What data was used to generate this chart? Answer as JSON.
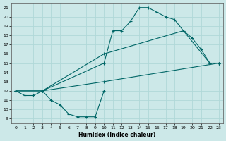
{
  "xlabel": "Humidex (Indice chaleur)",
  "bg_color": "#cce8e8",
  "grid_color": "#b0d8d8",
  "line_color": "#006666",
  "xlim": [
    -0.5,
    23.5
  ],
  "ylim": [
    8.5,
    21.5
  ],
  "xticks": [
    0,
    1,
    2,
    3,
    4,
    5,
    6,
    7,
    8,
    9,
    10,
    11,
    12,
    13,
    14,
    15,
    16,
    17,
    18,
    19,
    20,
    21,
    22,
    23
  ],
  "yticks": [
    9,
    10,
    11,
    12,
    13,
    14,
    15,
    16,
    17,
    18,
    19,
    20,
    21
  ],
  "line1_x": [
    0,
    1,
    2,
    3,
    4,
    5,
    6,
    7,
    8,
    9,
    10
  ],
  "line1_y": [
    12,
    11.5,
    11.5,
    12,
    11,
    10.5,
    9.5,
    9.2,
    9.2,
    9.2,
    12
  ],
  "line2_x": [
    3,
    10,
    11,
    12,
    13,
    14,
    15,
    16,
    17,
    18,
    19,
    20,
    21,
    22,
    23
  ],
  "line2_y": [
    12,
    15,
    18.5,
    18.5,
    19.5,
    21,
    21,
    20.5,
    20,
    19.7,
    18.5,
    17.7,
    16.5,
    15,
    15
  ],
  "line3_x": [
    0,
    3,
    10,
    19,
    22,
    23
  ],
  "line3_y": [
    12,
    12,
    16,
    18.5,
    15,
    15
  ],
  "line4_x": [
    0,
    3,
    10,
    23
  ],
  "line4_y": [
    12,
    12,
    13,
    15
  ]
}
